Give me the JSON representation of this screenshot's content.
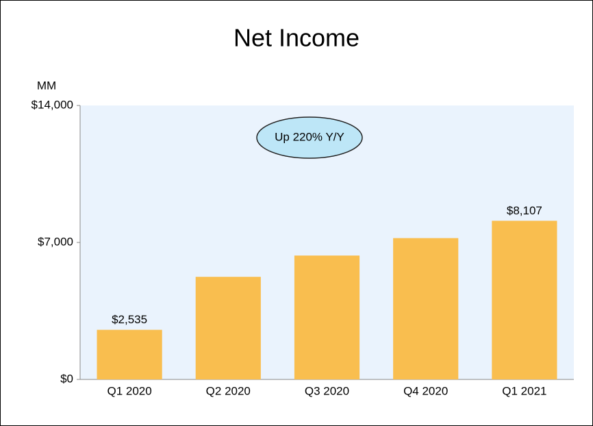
{
  "chart_data": {
    "type": "bar",
    "title": "Net Income",
    "unit_label": "MM",
    "annotation": "Up 220% Y/Y",
    "categories": [
      "Q1 2020",
      "Q2 2020",
      "Q3 2020",
      "Q4 2020",
      "Q1 2021"
    ],
    "values": [
      2535,
      5243,
      6331,
      7222,
      8107
    ],
    "value_labels": [
      "$2,535",
      null,
      null,
      null,
      "$8,107"
    ],
    "color": "#f9be4f",
    "ylim": [
      0,
      14000
    ],
    "yticks": [
      {
        "value": 0,
        "label": "$0"
      },
      {
        "value": 7000,
        "label": "$7,000"
      },
      {
        "value": 14000,
        "label": "$14,000"
      }
    ],
    "grid": false
  }
}
